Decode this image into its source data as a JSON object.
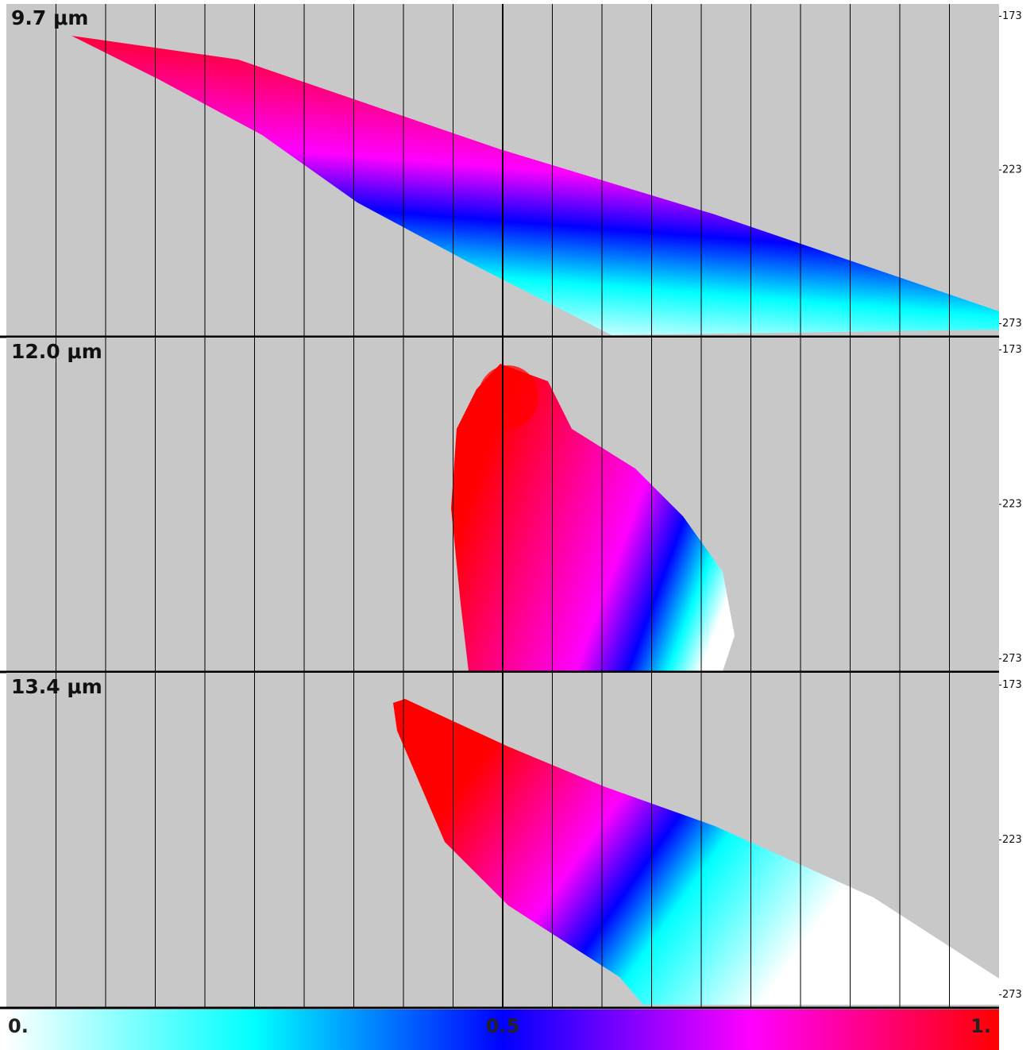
{
  "chart_data": [
    {
      "type": "heatmap",
      "title": "9.7 μm",
      "ylim": [
        169,
        277
      ],
      "yticks": [
        173,
        223,
        273
      ]
    },
    {
      "type": "heatmap",
      "title": "12.0 μm",
      "ylim": [
        169,
        277
      ],
      "yticks": [
        173,
        223,
        273
      ]
    },
    {
      "type": "heatmap",
      "title": "13.4 μm",
      "ylim": [
        169,
        277
      ],
      "yticks": [
        173,
        223,
        273
      ]
    }
  ],
  "colorbar": {
    "lim": [
      0,
      1
    ],
    "ticks": [
      {
        "value": 0,
        "label": "0."
      },
      0.5,
      {
        "value": 1,
        "label": "1."
      }
    ],
    "colors": [
      "#ffffff",
      "#00ffff",
      "#0000ff",
      "#ff00ff",
      "#ff0000"
    ]
  }
}
